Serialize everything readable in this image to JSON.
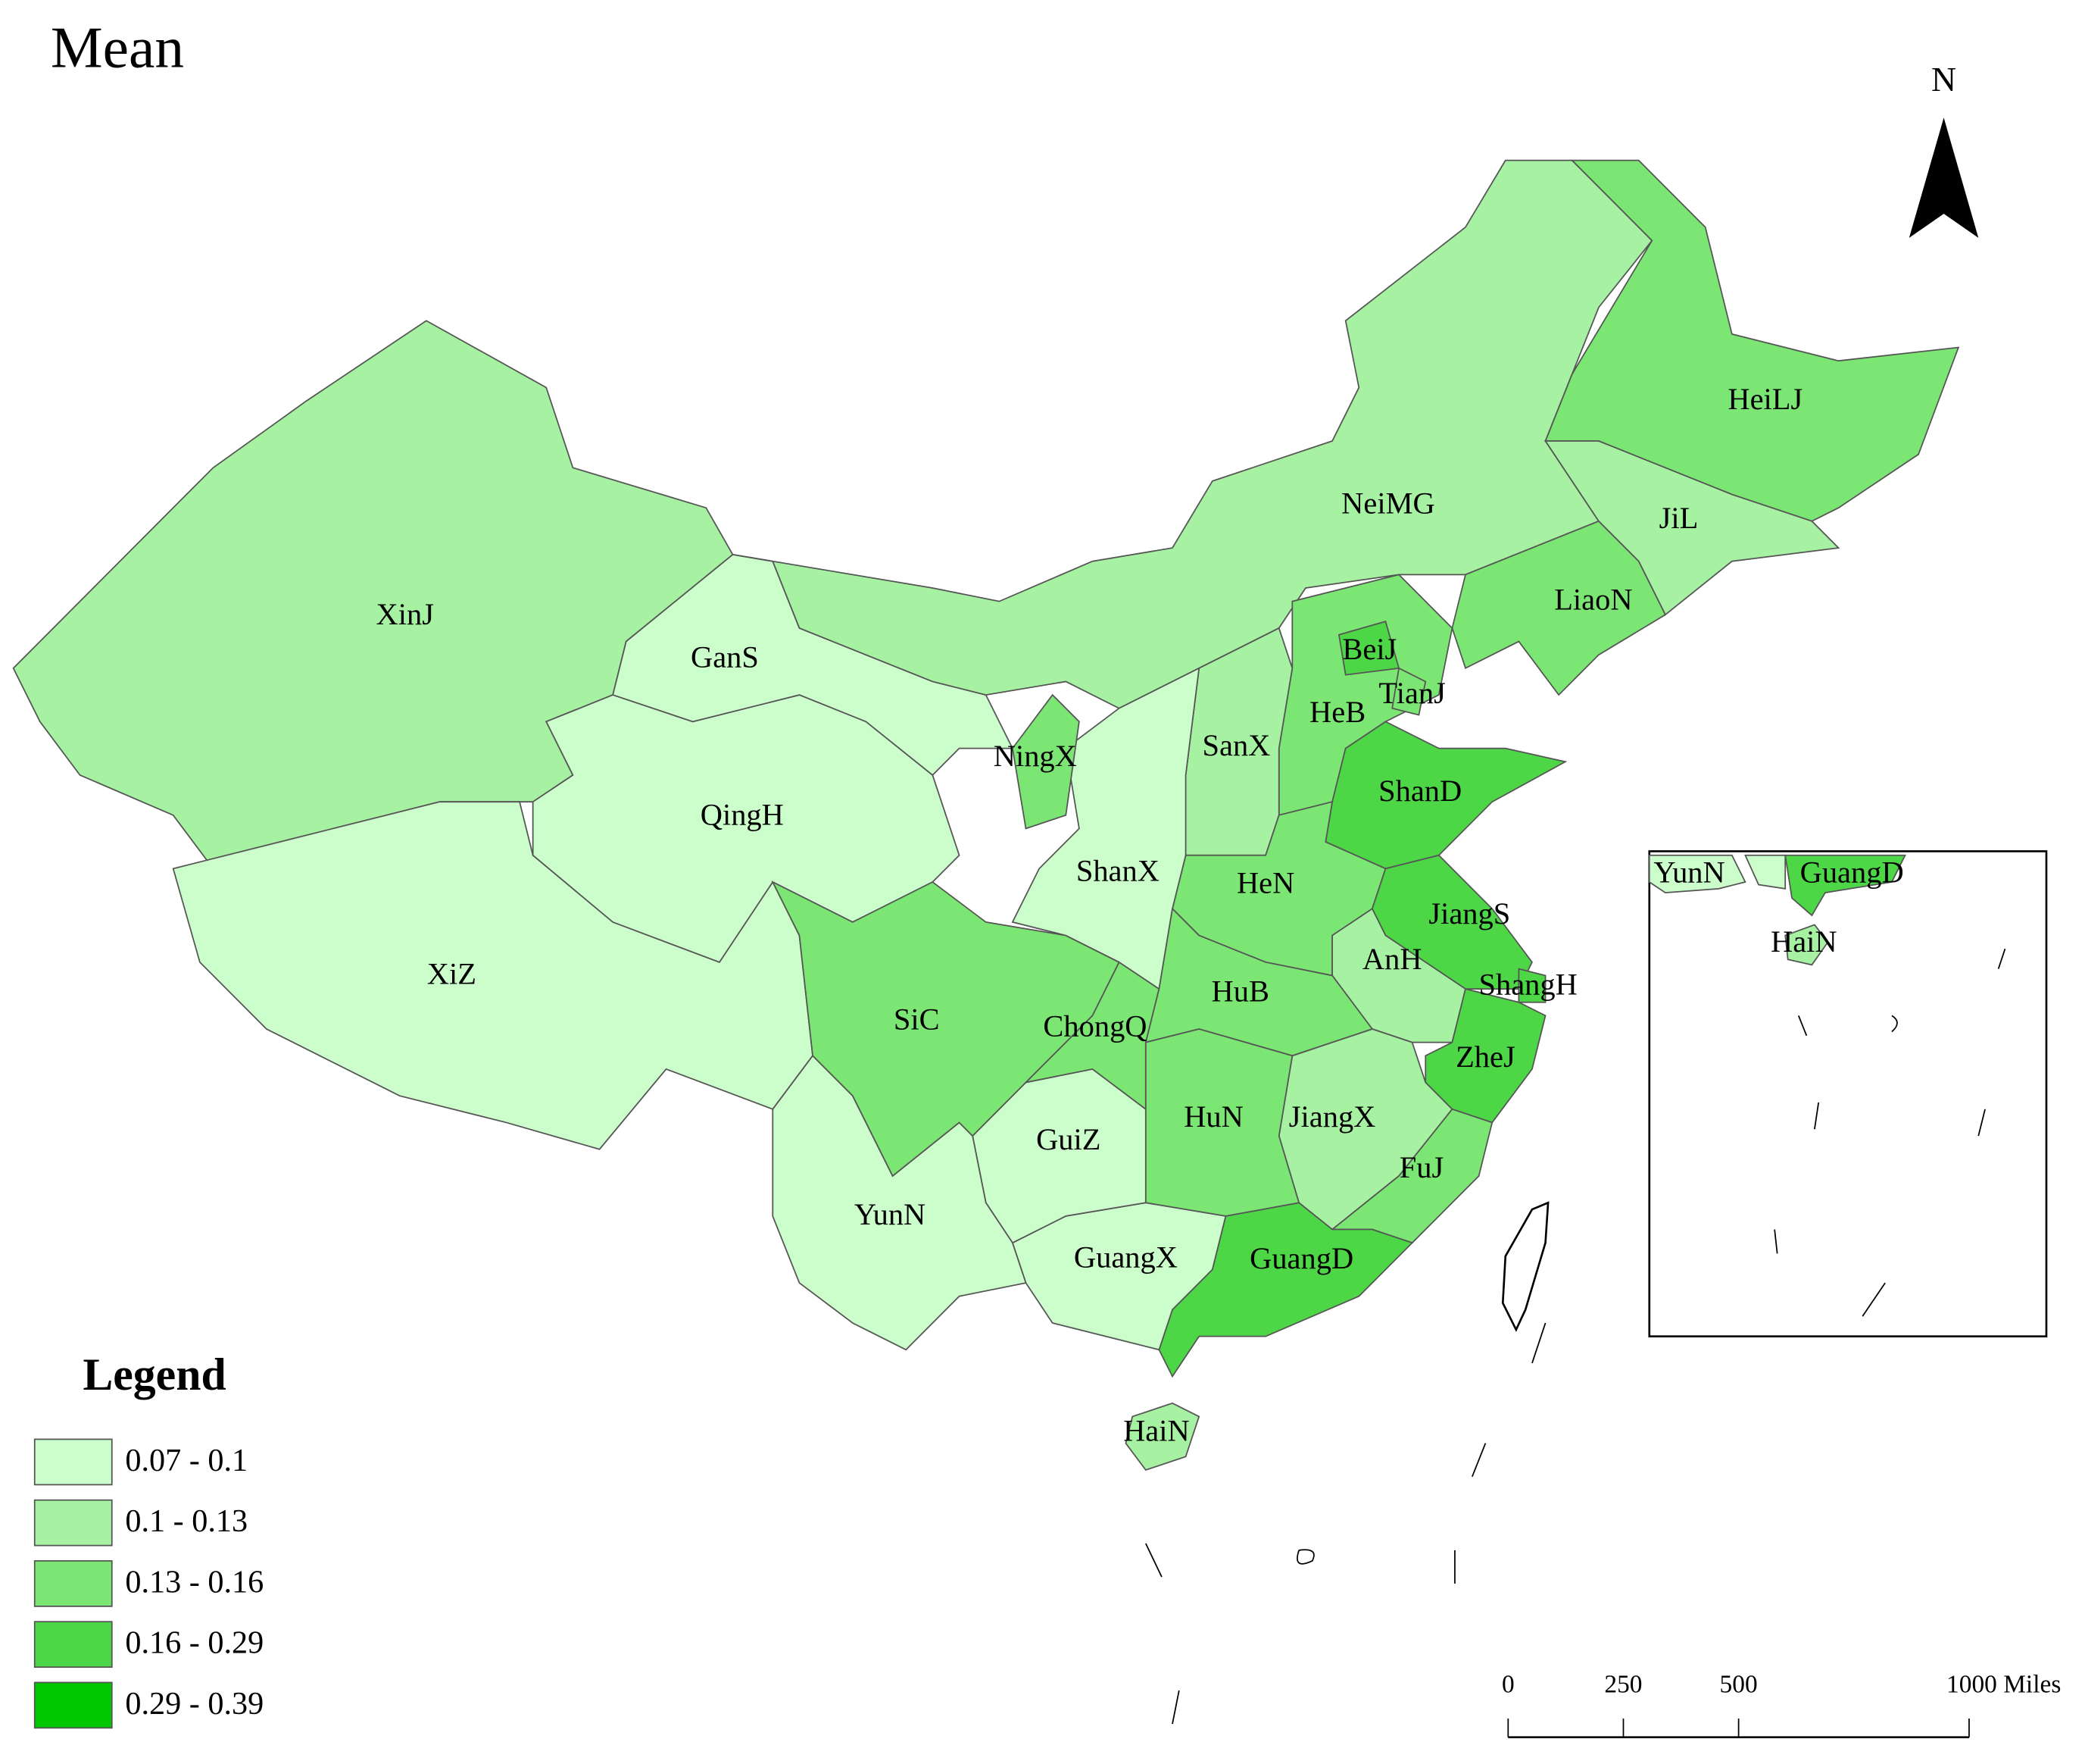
{
  "title": "Mean",
  "north": "N",
  "legend": {
    "title": "Legend",
    "classes": [
      {
        "label": "0.07 - 0.1",
        "color": "#ccfecb"
      },
      {
        "label": "0.1 - 0.13",
        "color": "#a6f2a2"
      },
      {
        "label": "0.13 - 0.16",
        "color": "#7ce674"
      },
      {
        "label": "0.16 - 0.29",
        "color": "#4dd646"
      },
      {
        "label": "0.29 - 0.39",
        "color": "#00c800"
      }
    ]
  },
  "provinces": [
    {
      "label": "XinJ",
      "color": "#a6f2a2"
    },
    {
      "label": "XiZ",
      "color": "#ccfecb"
    },
    {
      "label": "QingH",
      "color": "#ccfecb"
    },
    {
      "label": "GanS",
      "color": "#ccfecb"
    },
    {
      "label": "NeiMG",
      "color": "#a6f2a2"
    },
    {
      "label": "HeiLJ",
      "color": "#7ce674"
    },
    {
      "label": "JiL",
      "color": "#a6f2a2"
    },
    {
      "label": "LiaoN",
      "color": "#7ce674"
    },
    {
      "label": "HeB",
      "color": "#7ce674"
    },
    {
      "label": "BeiJ",
      "color": "#4dd646"
    },
    {
      "label": "TianJ",
      "color": "#7ce674"
    },
    {
      "label": "SanX",
      "color": "#a6f2a2"
    },
    {
      "label": "ShanD",
      "color": "#4dd646"
    },
    {
      "label": "HeN",
      "color": "#7ce674"
    },
    {
      "label": "JiangS",
      "color": "#4dd646"
    },
    {
      "label": "AnH",
      "color": "#a6f2a2"
    },
    {
      "label": "ShangH",
      "color": "#4dd646"
    },
    {
      "label": "ZheJ",
      "color": "#4dd646"
    },
    {
      "label": "JiangX",
      "color": "#a6f2a2"
    },
    {
      "label": "FuJ",
      "color": "#7ce674"
    },
    {
      "label": "GuangD",
      "color": "#4dd646"
    },
    {
      "label": "HaiN",
      "color": "#a6f2a2"
    },
    {
      "label": "GuangX",
      "color": "#ccfecb"
    },
    {
      "label": "GuiZ",
      "color": "#ccfecb"
    },
    {
      "label": "YunN",
      "color": "#ccfecb"
    },
    {
      "label": "SiC",
      "color": "#7ce674"
    },
    {
      "label": "ChongQ",
      "color": "#7ce674"
    },
    {
      "label": "ShanX",
      "color": "#ccfecb"
    },
    {
      "label": "NingX",
      "color": "#7ce674"
    },
    {
      "label": "HuB",
      "color": "#7ce674"
    },
    {
      "label": "HuN",
      "color": "#7ce674"
    }
  ],
  "inset": {
    "labels": [
      "YunN",
      "GuangD",
      "HaiN"
    ]
  },
  "scale": {
    "ticks": [
      0,
      250,
      500,
      {
        "value": 1000,
        "label": "1000 Miles"
      }
    ]
  }
}
